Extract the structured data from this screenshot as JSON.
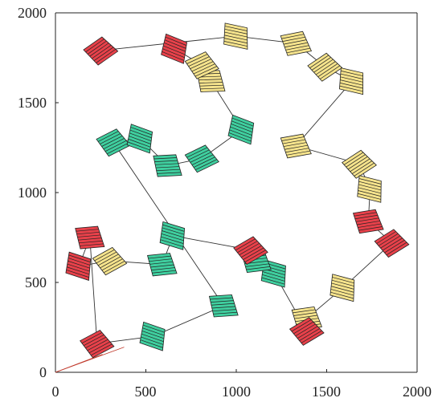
{
  "chart_data": {
    "type": "scatter",
    "title": "",
    "xlabel": "",
    "ylabel": "",
    "xlim": [
      0,
      2000
    ],
    "ylim": [
      0,
      2000
    ],
    "xticks": [
      "0",
      "500",
      "1000",
      "1500",
      "2000"
    ],
    "yticks": [
      "0",
      "500",
      "1000",
      "1500",
      "2000"
    ],
    "grid": false,
    "colors": {
      "red": "#e8414a",
      "yellow": "#f5e38c",
      "green": "#3fcf9f",
      "line": "#333333",
      "origin_line": "#c0392b"
    },
    "route": [
      {
        "x": 250,
        "y": 1790,
        "color": "red"
      },
      {
        "x": 1000,
        "y": 1870,
        "color": "yellow"
      },
      {
        "x": 1330,
        "y": 1830,
        "color": "yellow"
      },
      {
        "x": 1490,
        "y": 1700,
        "color": "yellow"
      },
      {
        "x": 1640,
        "y": 1620,
        "color": "yellow"
      },
      {
        "x": 1330,
        "y": 1260,
        "color": "yellow"
      },
      {
        "x": 1680,
        "y": 1160,
        "color": "yellow"
      },
      {
        "x": 1740,
        "y": 1020,
        "color": "yellow"
      },
      {
        "x": 1730,
        "y": 840,
        "color": "red"
      },
      {
        "x": 1860,
        "y": 720,
        "color": "red"
      },
      {
        "x": 1590,
        "y": 470,
        "color": "yellow"
      },
      {
        "x": 1390,
        "y": 300,
        "color": "yellow"
      },
      {
        "x": 1390,
        "y": 230,
        "color": "red"
      },
      {
        "x": 1210,
        "y": 550,
        "color": "green"
      },
      {
        "x": 1110,
        "y": 620,
        "color": "green"
      },
      {
        "x": 1080,
        "y": 680,
        "color": "red"
      },
      {
        "x": 650,
        "y": 760,
        "color": "green"
      },
      {
        "x": 590,
        "y": 600,
        "color": "green"
      },
      {
        "x": 300,
        "y": 620,
        "color": "yellow"
      },
      {
        "x": 130,
        "y": 590,
        "color": "red"
      },
      {
        "x": 190,
        "y": 750,
        "color": "red"
      },
      {
        "x": 230,
        "y": 160,
        "color": "red"
      },
      {
        "x": 540,
        "y": 200,
        "color": "green"
      },
      {
        "x": 930,
        "y": 370,
        "color": "green"
      },
      {
        "x": 320,
        "y": 1280,
        "color": "green"
      },
      {
        "x": 470,
        "y": 1300,
        "color": "green"
      },
      {
        "x": 620,
        "y": 1150,
        "color": "green"
      },
      {
        "x": 810,
        "y": 1190,
        "color": "green"
      },
      {
        "x": 1030,
        "y": 1350,
        "color": "green"
      },
      {
        "x": 860,
        "y": 1620,
        "color": "yellow"
      },
      {
        "x": 810,
        "y": 1710,
        "color": "yellow"
      },
      {
        "x": 660,
        "y": 1800,
        "color": "red"
      }
    ],
    "origin_lines": [
      {
        "x1": 0,
        "y1": 0,
        "x2": 380,
        "y2": 140
      },
      {
        "x1": 0,
        "y1": 0,
        "x2": 260,
        "y2": 100
      }
    ]
  }
}
